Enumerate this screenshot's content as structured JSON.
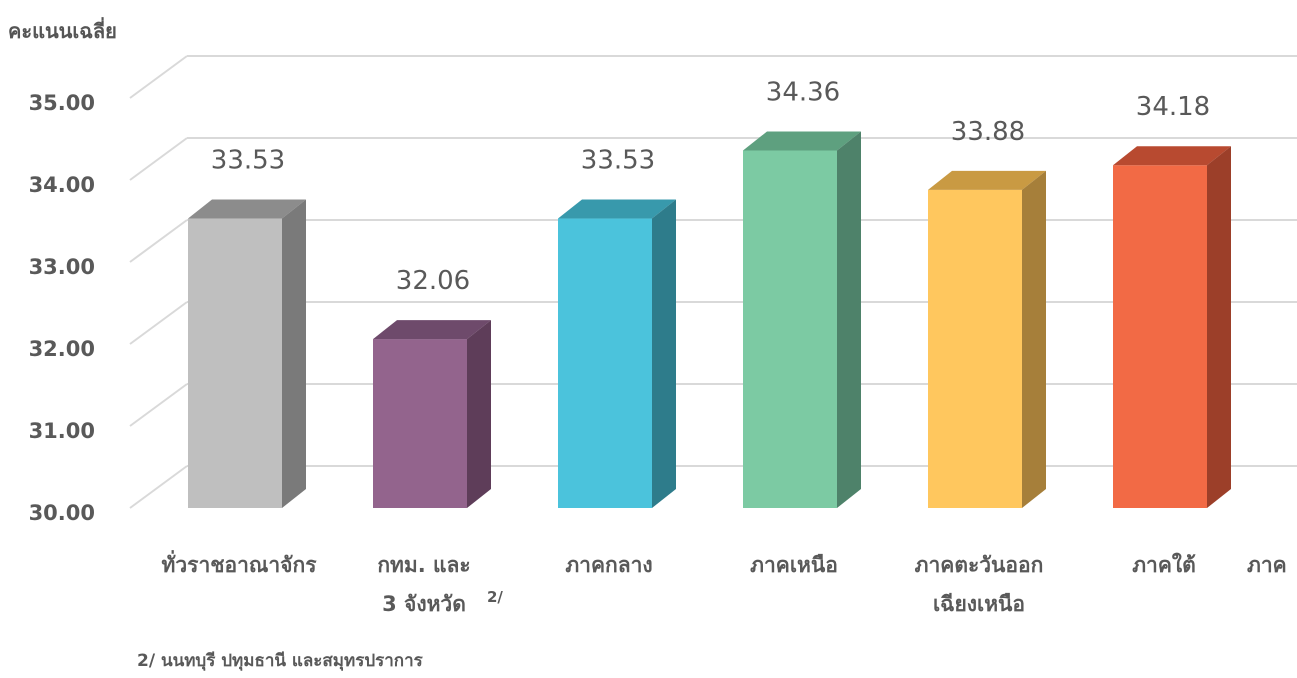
{
  "chart_data": {
    "type": "bar",
    "ylabel": "คะแนนเฉลี่ย",
    "xlabel": "ภาค",
    "ylim": [
      30,
      35
    ],
    "yticks": [
      "30.00",
      "31.00",
      "32.00",
      "33.00",
      "34.00",
      "35.00"
    ],
    "grid": true,
    "categories": [
      {
        "lines": [
          "ทั่วราชอาณาจักร"
        ],
        "sup": ""
      },
      {
        "lines": [
          "กทม. และ",
          "3 จังหวัด"
        ],
        "sup": "2/"
      },
      {
        "lines": [
          "ภาคกลาง"
        ],
        "sup": ""
      },
      {
        "lines": [
          "ภาคเหนือ"
        ],
        "sup": ""
      },
      {
        "lines": [
          "ภาคตะวันออก",
          "เฉียงเหนือ"
        ],
        "sup": ""
      },
      {
        "lines": [
          "ภาคใต้"
        ],
        "sup": ""
      }
    ],
    "values": [
      33.53,
      32.06,
      33.53,
      34.36,
      33.88,
      34.18
    ],
    "value_labels": [
      "33.53",
      "32.06",
      "33.53",
      "34.36",
      "33.88",
      "34.18"
    ],
    "colors": [
      {
        "front": "#bfbfbf",
        "top": "#8c8c8c",
        "side": "#7a7a7a"
      },
      {
        "front": "#93648d",
        "top": "#6e4a6b",
        "side": "#5e3d59"
      },
      {
        "front": "#4bc3dc",
        "top": "#3899ac",
        "side": "#2e7c8b"
      },
      {
        "front": "#7ccaa3",
        "top": "#5ea07f",
        "side": "#4e826a"
      },
      {
        "front": "#ffc75e",
        "top": "#c99a43",
        "side": "#a67f3a"
      },
      {
        "front": "#f26a45",
        "top": "#b84a30",
        "side": "#9c3f29"
      }
    ],
    "footnote": "2/ นนทบุรี ปทุมธานี และสมุทรปราการ"
  }
}
